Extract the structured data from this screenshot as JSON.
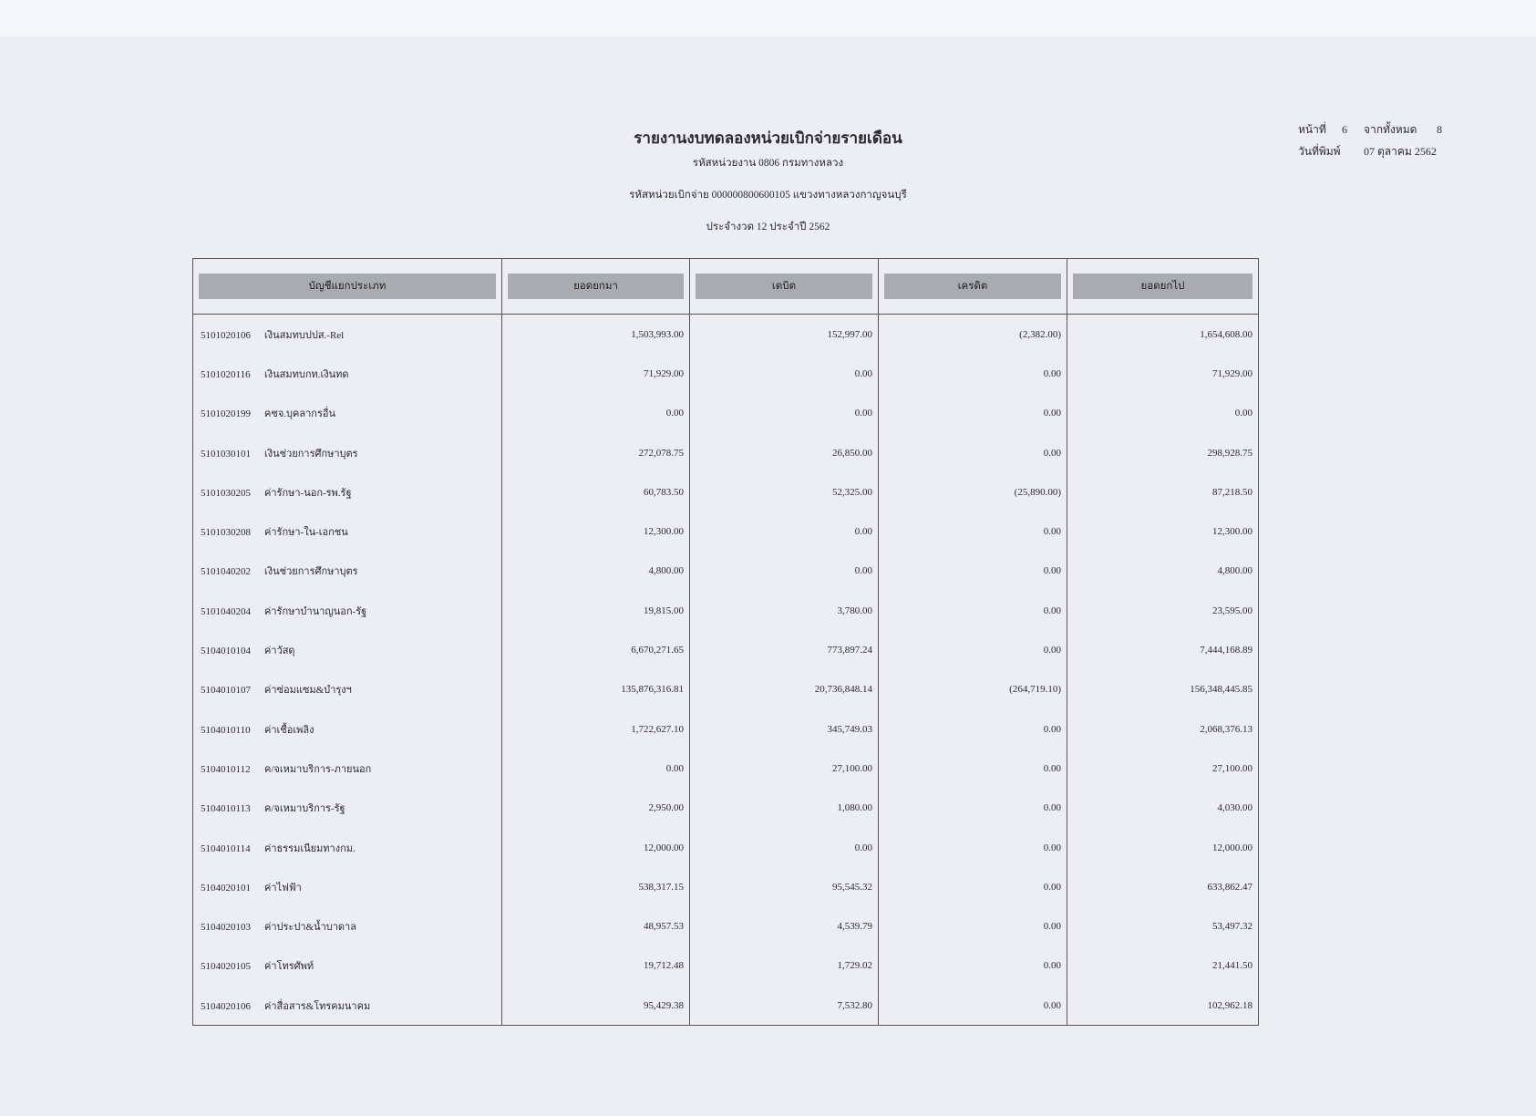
{
  "header": {
    "title": "รายงานงบทดลองหน่วยเบิกจ่ายรายเดือน",
    "agency": "รหัสหน่วยงาน 0806 กรมทางหลวง",
    "disbursing_unit": "รหัสหน่วยเบิกจ่าย 000000800600105 แขวงทางหลวงกาญจนบุรี",
    "period": "ประจำงวด 12 ประจำปี 2562"
  },
  "page_info": {
    "page_label": "หน้าที่",
    "page": "6",
    "of_label": "จากทั้งหมด",
    "total": "8",
    "print_date_label": "วันที่พิมพ์",
    "print_date": "07 ตุลาคม 2562"
  },
  "table": {
    "columns": [
      "บัญชีแยกประเภท",
      "ยอดยกมา",
      "เดบิต",
      "เครดิต",
      "ยอดยกไป"
    ],
    "rows": [
      {
        "code": "5101020106",
        "name": "เงินสมทบปปส.-Rel",
        "brought": "1,503,993.00",
        "debit": "152,997.00",
        "credit": "(2,382.00)",
        "carried": "1,654,608.00"
      },
      {
        "code": "5101020116",
        "name": "เงินสมทบกท.เงินทด",
        "brought": "71,929.00",
        "debit": "0.00",
        "credit": "0.00",
        "carried": "71,929.00"
      },
      {
        "code": "5101020199",
        "name": "คชจ.บุคลากรอื่น",
        "brought": "0.00",
        "debit": "0.00",
        "credit": "0.00",
        "carried": "0.00"
      },
      {
        "code": "5101030101",
        "name": "เงินช่วยการศึกษาบุตร",
        "brought": "272,078.75",
        "debit": "26,850.00",
        "credit": "0.00",
        "carried": "298,928.75"
      },
      {
        "code": "5101030205",
        "name": "ค่ารักษา-นอก-รพ.รัฐ",
        "brought": "60,783.50",
        "debit": "52,325.00",
        "credit": "(25,890.00)",
        "carried": "87,218.50"
      },
      {
        "code": "5101030208",
        "name": "ค่ารักษา-ใน-เอกชน",
        "brought": "12,300.00",
        "debit": "0.00",
        "credit": "0.00",
        "carried": "12,300.00"
      },
      {
        "code": "5101040202",
        "name": "เงินช่วยการศึกษาบุตร",
        "brought": "4,800.00",
        "debit": "0.00",
        "credit": "0.00",
        "carried": "4,800.00"
      },
      {
        "code": "5101040204",
        "name": "ค่ารักษาบำนาญนอก-รัฐ",
        "brought": "19,815.00",
        "debit": "3,780.00",
        "credit": "0.00",
        "carried": "23,595.00"
      },
      {
        "code": "5104010104",
        "name": "ค่าวัสดุ",
        "brought": "6,670,271.65",
        "debit": "773,897.24",
        "credit": "0.00",
        "carried": "7,444,168.89"
      },
      {
        "code": "5104010107",
        "name": "ค่าซ่อมแซม&บำรุงฯ",
        "brought": "135,876,316.81",
        "debit": "20,736,848.14",
        "credit": "(264,719.10)",
        "carried": "156,348,445.85"
      },
      {
        "code": "5104010110",
        "name": "ค่าเชื้อเพลิง",
        "brought": "1,722,627.10",
        "debit": "345,749.03",
        "credit": "0.00",
        "carried": "2,068,376.13"
      },
      {
        "code": "5104010112",
        "name": "ค/จเหมาบริการ-ภายนอก",
        "brought": "0.00",
        "debit": "27,100.00",
        "credit": "0.00",
        "carried": "27,100.00"
      },
      {
        "code": "5104010113",
        "name": "ค/จเหมาบริการ-รัฐ",
        "brought": "2,950.00",
        "debit": "1,080.00",
        "credit": "0.00",
        "carried": "4,030.00"
      },
      {
        "code": "5104010114",
        "name": "ค่าธรรมเนียมทางกม.",
        "brought": "12,000.00",
        "debit": "0.00",
        "credit": "0.00",
        "carried": "12,000.00"
      },
      {
        "code": "5104020101",
        "name": "ค่าไฟฟ้า",
        "brought": "538,317.15",
        "debit": "95,545.32",
        "credit": "0.00",
        "carried": "633,862.47"
      },
      {
        "code": "5104020103",
        "name": "ค่าประปา&น้ำบาดาล",
        "brought": "48,957.53",
        "debit": "4,539.79",
        "credit": "0.00",
        "carried": "53,497.32"
      },
      {
        "code": "5104020105",
        "name": "ค่าโทรศัพท์",
        "brought": "19,712.48",
        "debit": "1,729.02",
        "credit": "0.00",
        "carried": "21,441.50"
      },
      {
        "code": "5104020106",
        "name": "ค่าสื่อสาร&โทรคมนาคม",
        "brought": "95,429.38",
        "debit": "7,532.80",
        "credit": "0.00",
        "carried": "102,962.18"
      }
    ]
  }
}
